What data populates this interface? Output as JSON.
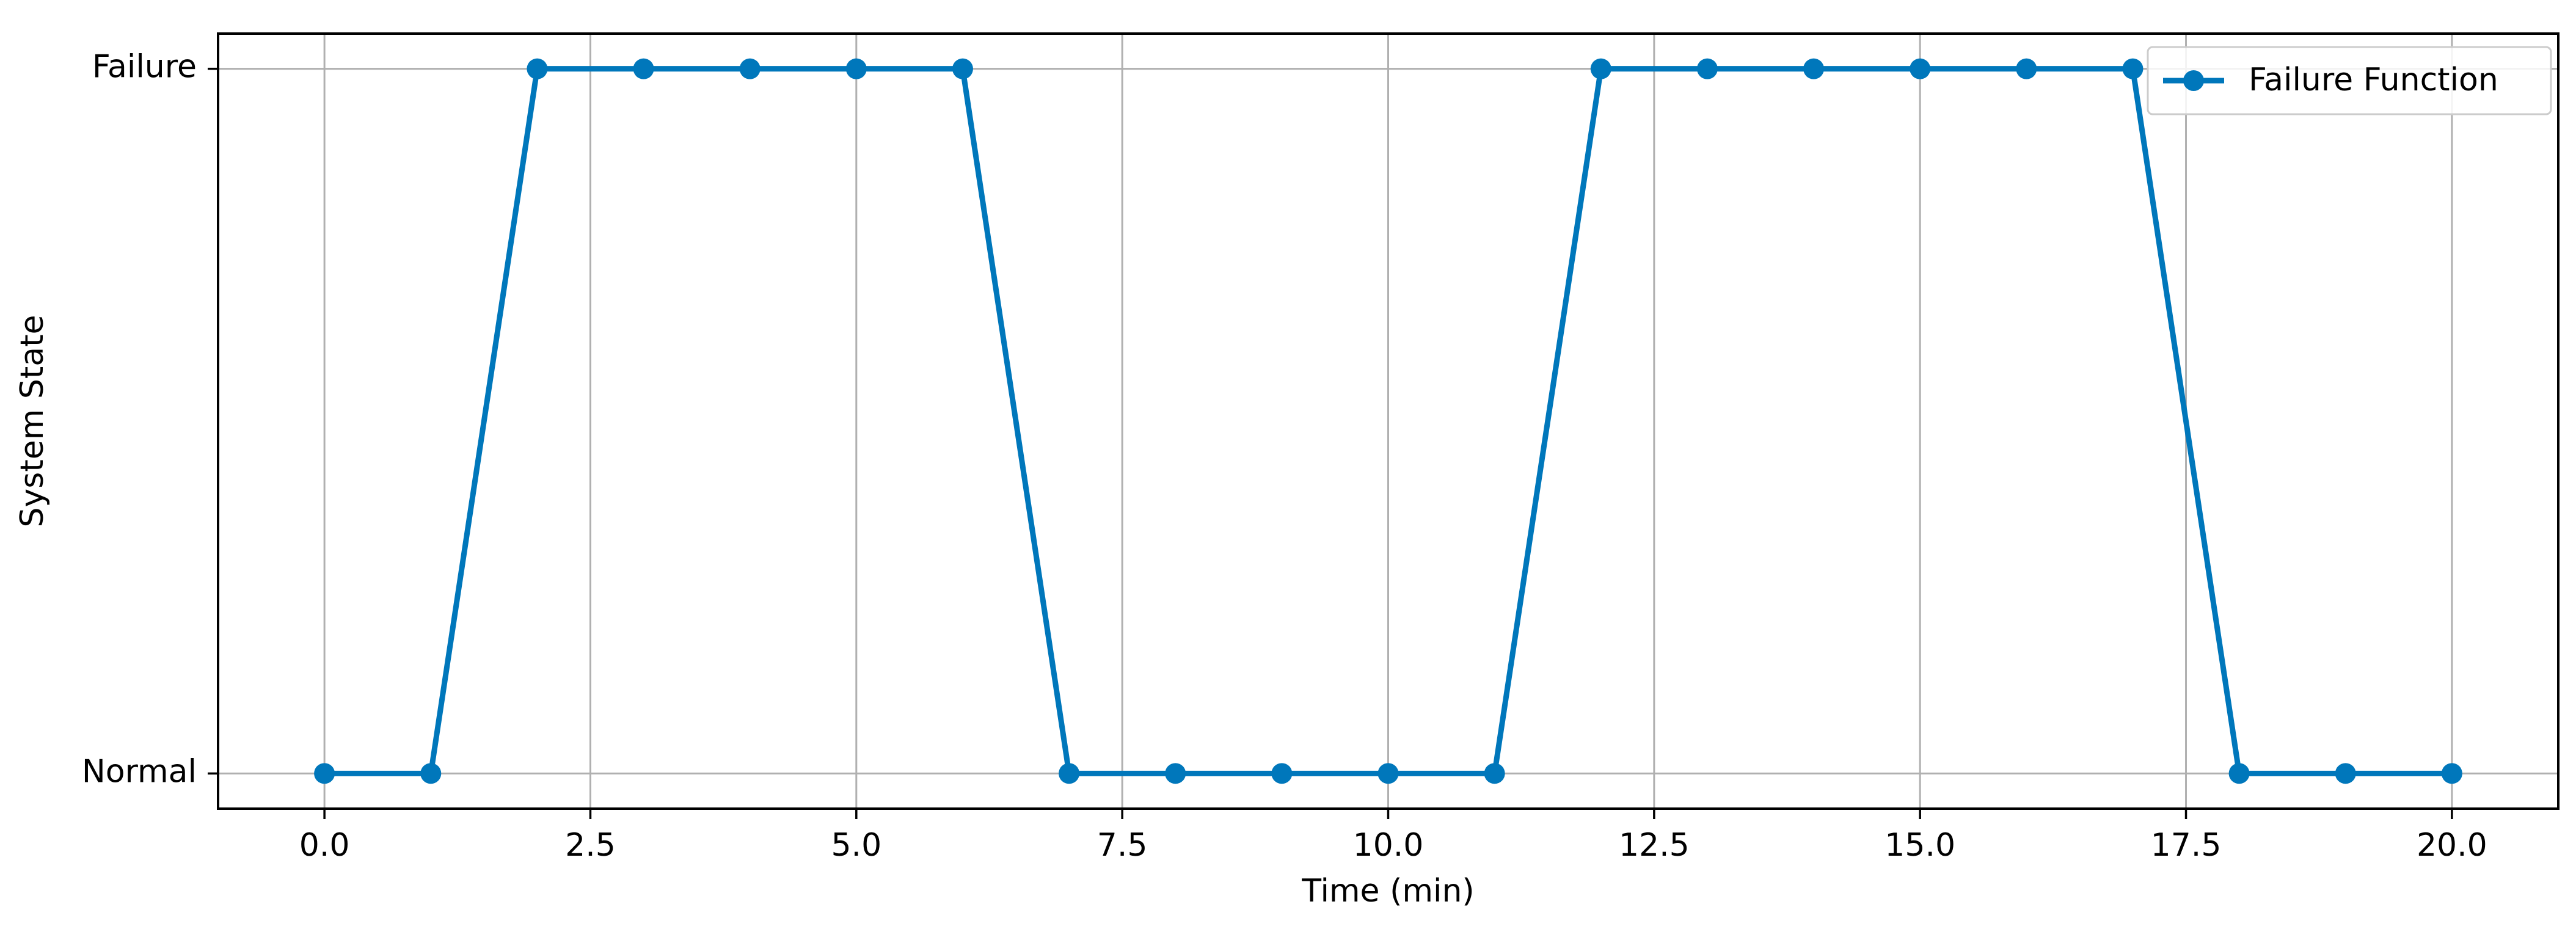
{
  "chart_data": {
    "type": "line",
    "title": "",
    "xlabel": "Time (min)",
    "ylabel": "System State",
    "xlim": [
      -1.0,
      21.0
    ],
    "ylim": [
      -0.05,
      1.05
    ],
    "xticks": [
      0.0,
      2.5,
      5.0,
      7.5,
      10.0,
      12.5,
      15.0,
      17.5,
      20.0
    ],
    "xtick_labels": [
      "0.0",
      "2.5",
      "5.0",
      "7.5",
      "10.0",
      "12.5",
      "15.0",
      "17.5",
      "20.0"
    ],
    "yticks": [
      0,
      1
    ],
    "ytick_labels": [
      "Normal",
      "Failure"
    ],
    "grid": true,
    "legend_position": "top-right",
    "series": [
      {
        "name": "Failure Function",
        "color": "#0077bb",
        "marker": "circle",
        "x": [
          0,
          1,
          2,
          3,
          4,
          5,
          6,
          7,
          8,
          9,
          10,
          11,
          12,
          13,
          14,
          15,
          16,
          17,
          18,
          19,
          20
        ],
        "y": [
          0,
          0,
          1,
          1,
          1,
          1,
          1,
          0,
          0,
          0,
          0,
          0,
          1,
          1,
          1,
          1,
          1,
          1,
          0,
          0,
          0
        ]
      }
    ]
  }
}
